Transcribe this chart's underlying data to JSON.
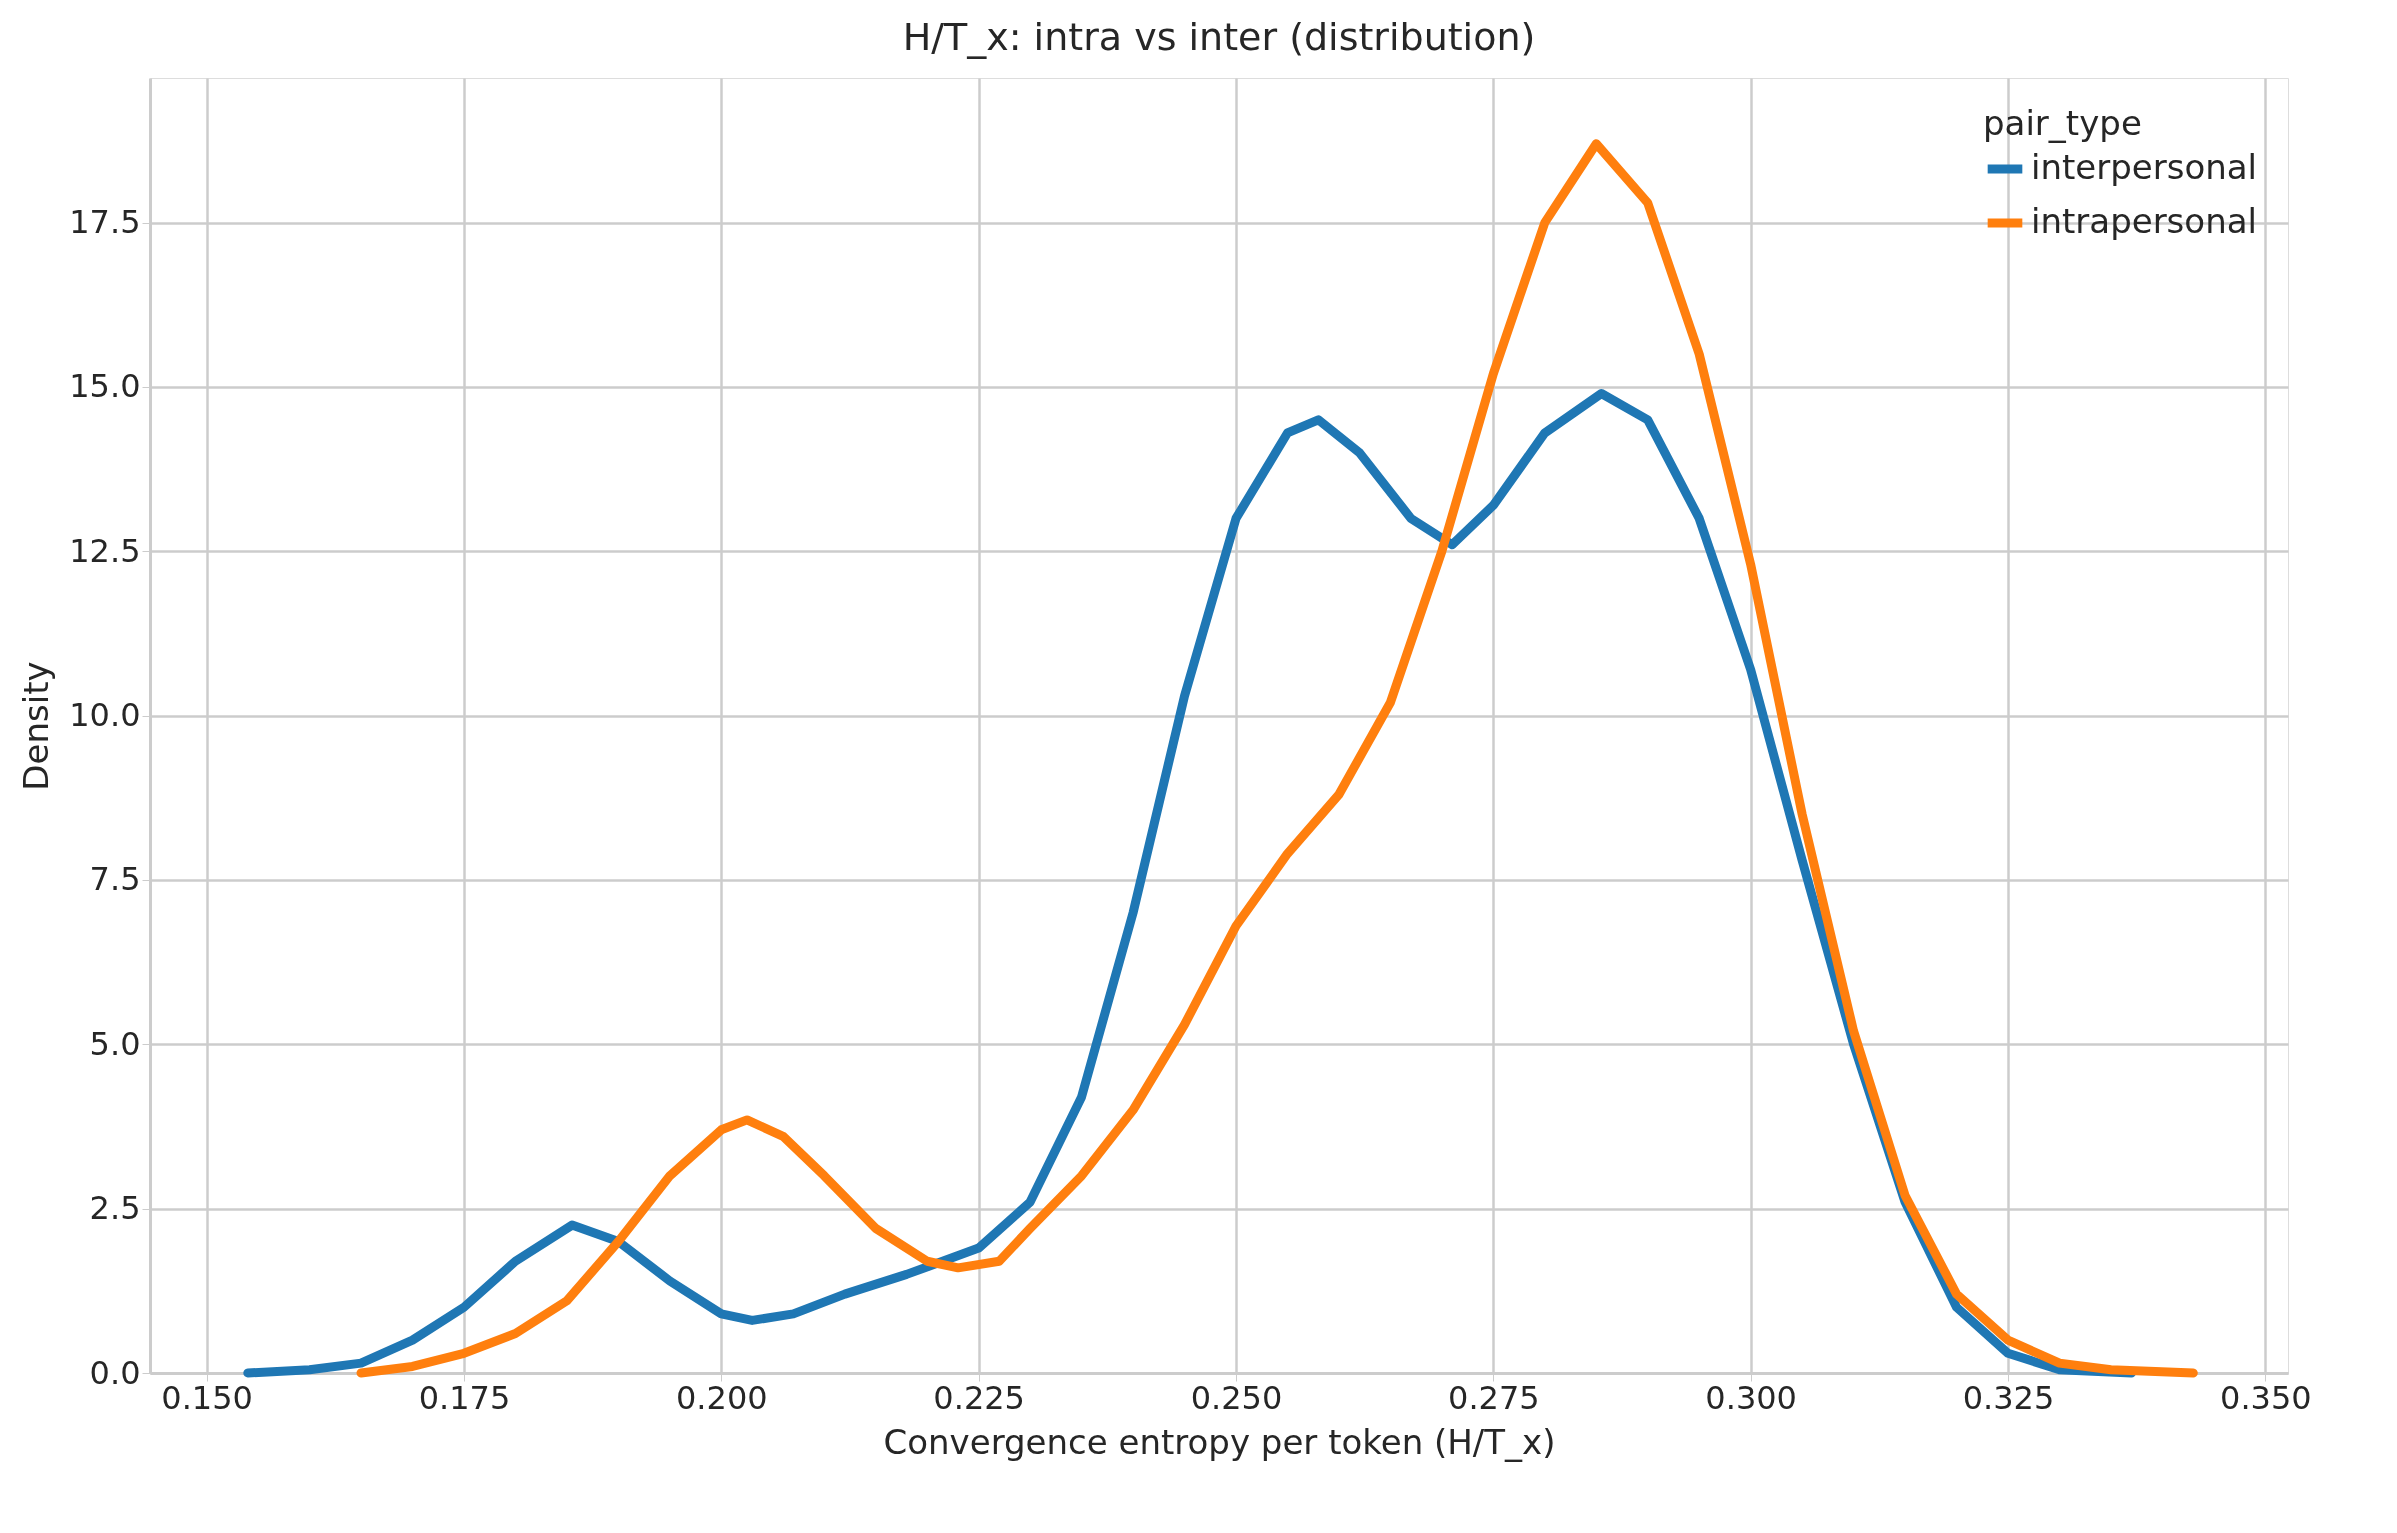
{
  "chart_data": {
    "type": "line",
    "title": "H/T_x: intra vs inter (distribution)",
    "xlabel": "Convergence entropy per token (H/T_x)",
    "ylabel": "Density",
    "legend_title": "pair_type",
    "series": [
      {
        "name": "interpersonal",
        "color": "#1f77b4",
        "x": [
          0.154,
          0.16,
          0.165,
          0.17,
          0.175,
          0.18,
          0.1855,
          0.19,
          0.195,
          0.2,
          0.203,
          0.207,
          0.212,
          0.218,
          0.225,
          0.23,
          0.235,
          0.24,
          0.245,
          0.25,
          0.255,
          0.258,
          0.262,
          0.267,
          0.271,
          0.275,
          0.28,
          0.2855,
          0.29,
          0.295,
          0.3,
          0.305,
          0.31,
          0.315,
          0.32,
          0.325,
          0.33,
          0.337
        ],
        "values": [
          0,
          0.05,
          0.15,
          0.5,
          1.0,
          1.7,
          2.25,
          2.0,
          1.4,
          0.9,
          0.8,
          0.9,
          1.2,
          1.5,
          1.9,
          2.6,
          4.2,
          7.0,
          10.3,
          13.0,
          14.3,
          14.5,
          14.0,
          13.0,
          12.6,
          13.2,
          14.3,
          14.9,
          14.5,
          13.0,
          10.7,
          7.8,
          5.0,
          2.6,
          1.0,
          0.3,
          0.05,
          0
        ]
      },
      {
        "name": "intrapersonal",
        "color": "#ff7f0e",
        "x": [
          0.165,
          0.17,
          0.175,
          0.18,
          0.185,
          0.19,
          0.195,
          0.2,
          0.2025,
          0.206,
          0.21,
          0.215,
          0.22,
          0.223,
          0.227,
          0.23,
          0.235,
          0.24,
          0.245,
          0.25,
          0.255,
          0.26,
          0.265,
          0.27,
          0.275,
          0.28,
          0.285,
          0.29,
          0.295,
          0.3,
          0.305,
          0.31,
          0.315,
          0.32,
          0.325,
          0.33,
          0.335,
          0.343
        ],
        "values": [
          0,
          0.1,
          0.3,
          0.6,
          1.1,
          2.0,
          3.0,
          3.7,
          3.85,
          3.6,
          3.0,
          2.2,
          1.7,
          1.6,
          1.7,
          2.2,
          3.0,
          4.0,
          5.3,
          6.8,
          7.9,
          8.8,
          10.2,
          12.5,
          15.2,
          17.5,
          18.7,
          17.8,
          15.5,
          12.3,
          8.5,
          5.2,
          2.7,
          1.2,
          0.5,
          0.15,
          0.05,
          0
        ]
      }
    ],
    "xlim": [
      0.1445,
      0.3522
    ],
    "ylim": [
      0,
      19.7
    ],
    "xticks": [
      {
        "value": 0.15,
        "label": "0.150"
      },
      {
        "value": 0.175,
        "label": "0.175"
      },
      {
        "value": 0.2,
        "label": "0.200"
      },
      {
        "value": 0.225,
        "label": "0.225"
      },
      {
        "value": 0.25,
        "label": "0.250"
      },
      {
        "value": 0.275,
        "label": "0.275"
      },
      {
        "value": 0.3,
        "label": "0.300"
      },
      {
        "value": 0.325,
        "label": "0.325"
      },
      {
        "value": 0.35,
        "label": "0.350"
      }
    ],
    "yticks": [
      {
        "value": 0,
        "label": "0.0"
      },
      {
        "value": 2.5,
        "label": "2.5"
      },
      {
        "value": 5,
        "label": "5.0"
      },
      {
        "value": 7.5,
        "label": "7.5"
      },
      {
        "value": 10,
        "label": "10.0"
      },
      {
        "value": 12.5,
        "label": "12.5"
      },
      {
        "value": 15,
        "label": "15.0"
      },
      {
        "value": 17.5,
        "label": "17.5"
      }
    ],
    "grid": true,
    "legend": "top right",
    "line_style": "solid",
    "marker": "none"
  }
}
